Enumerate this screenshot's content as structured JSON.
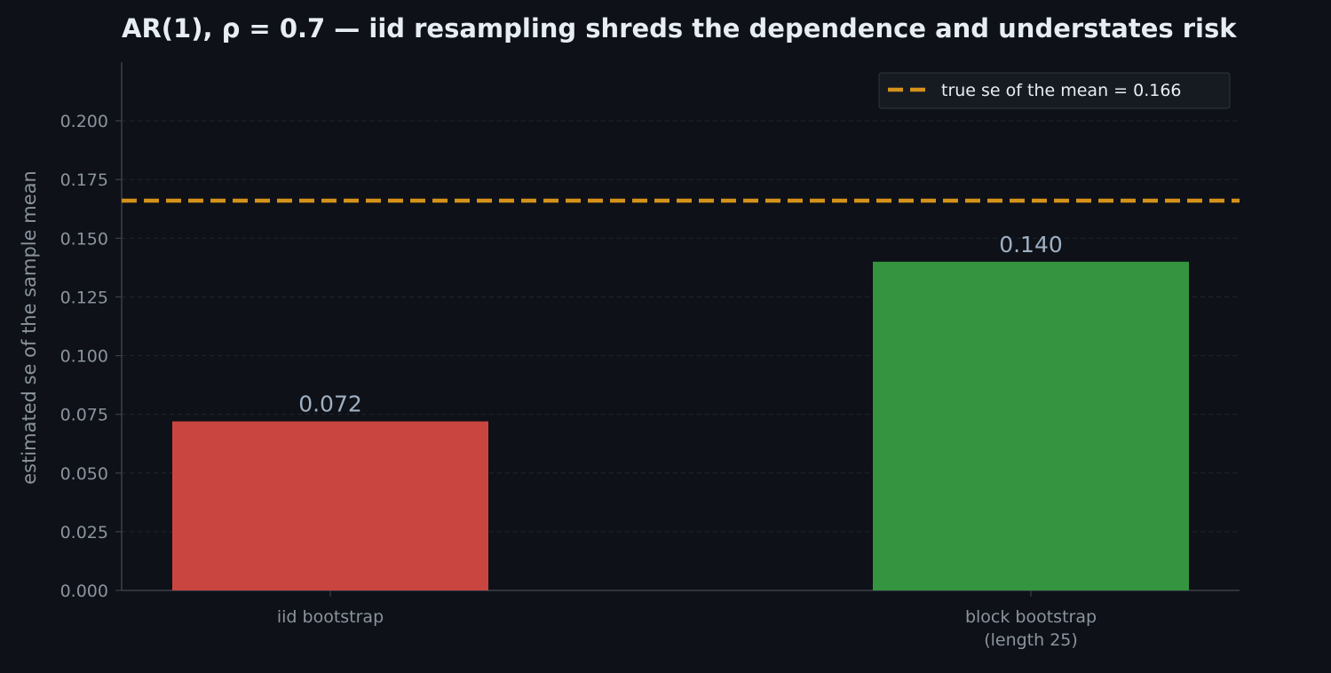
{
  "chart_data": {
    "type": "bar",
    "title": "AR(1), ρ = 0.7 — iid resampling shreds the dependence and understates risk",
    "xlabel": "",
    "ylabel": "estimated se of the sample mean",
    "categories": [
      "iid bootstrap",
      "block bootstrap\n(length 25)"
    ],
    "values": [
      0.072,
      0.14
    ],
    "data_labels": [
      "0.072",
      "0.140"
    ],
    "bar_colors": [
      "#c94540",
      "#34943f"
    ],
    "ylim": [
      0,
      0.225
    ],
    "yticks": [
      0.0,
      0.025,
      0.05,
      0.075,
      0.1,
      0.125,
      0.15,
      0.175,
      0.2
    ],
    "ytick_labels": [
      "0.000",
      "0.025",
      "0.050",
      "0.075",
      "0.100",
      "0.125",
      "0.150",
      "0.175",
      "0.200"
    ],
    "reference_line": {
      "value": 0.166,
      "label": "true se of the mean = 0.166",
      "color": "#d4921a",
      "style": "dashed"
    },
    "grid": true,
    "legend_position": "top-right",
    "background": "#0e1117"
  }
}
